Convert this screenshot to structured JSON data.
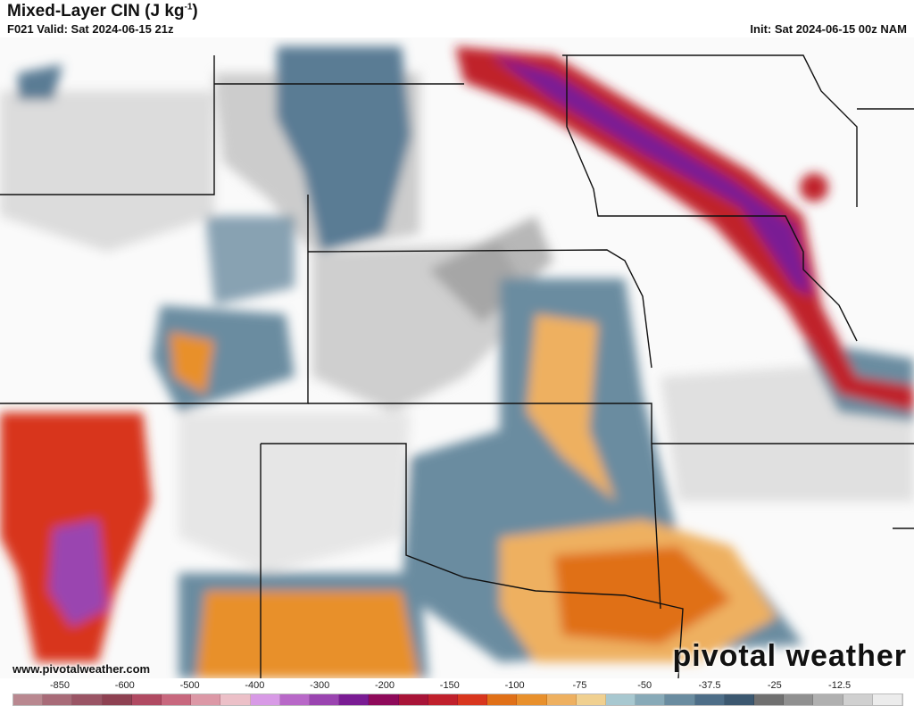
{
  "header": {
    "title": "Mixed-Layer CIN (J kg",
    "title_sup": "-1",
    "title_close": ")",
    "valid": "F021 Valid: Sat 2024-06-15 21z",
    "init": "Init: Sat 2024-06-15 00z NAM"
  },
  "watermark": {
    "site": "www.pivotalweather.com",
    "brand": "pivotal weather"
  },
  "colorbar": {
    "labels": [
      "-850",
      "-600",
      "-500",
      "-400",
      "-300",
      "-200",
      "-150",
      "-100",
      "-75",
      "-50",
      "-37.5",
      "-25",
      "-12.5"
    ],
    "colors": [
      "#b98890",
      "#a86b78",
      "#9a5565",
      "#8e4152",
      "#b04a62",
      "#c8687e",
      "#dc98a6",
      "#ecc0c8",
      "#d89ae6",
      "#b868c8",
      "#9a44b0",
      "#7a1c94",
      "#8e0a5a",
      "#a81438",
      "#c0202c",
      "#d8361e",
      "#e07018",
      "#e8902c",
      "#eeb060",
      "#f0d090",
      "#a8c8d0",
      "#88aab8",
      "#6a8ca0",
      "#4e6e88",
      "#3c5870",
      "#707070",
      "#909090",
      "#b0b0b0",
      "#d0d0d0",
      "#ececec"
    ]
  }
}
